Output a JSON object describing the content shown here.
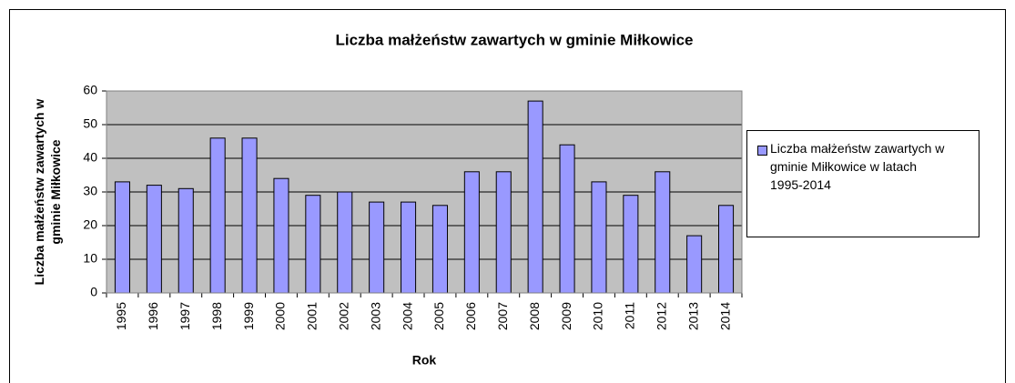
{
  "chart_data": {
    "type": "bar",
    "title": "Liczba małżeństw zawartych w gminie Miłkowice",
    "x_label": "Rok",
    "y_label": "Liczba małżeństw zawartych w gminie Miłkowice",
    "categories": [
      "1995",
      "1996",
      "1997",
      "1998",
      "1999",
      "2000",
      "2001",
      "2002",
      "2003",
      "2004",
      "2005",
      "2006",
      "2007",
      "2008",
      "2009",
      "2010",
      "2011",
      "2012",
      "2013",
      "2014"
    ],
    "series": [
      {
        "name": "Liczba małżeństw zawartych w gminie Miłkowice w latach 1995-2014",
        "color": "#9999ff",
        "values": [
          33,
          32,
          31,
          46,
          46,
          34,
          29,
          30,
          27,
          27,
          26,
          36,
          36,
          57,
          44,
          33,
          29,
          36,
          17,
          26
        ]
      }
    ],
    "ylim": [
      0,
      60
    ],
    "yticks": [
      0,
      10,
      20,
      30,
      40,
      50,
      60
    ],
    "grid": true,
    "legend": "right"
  }
}
